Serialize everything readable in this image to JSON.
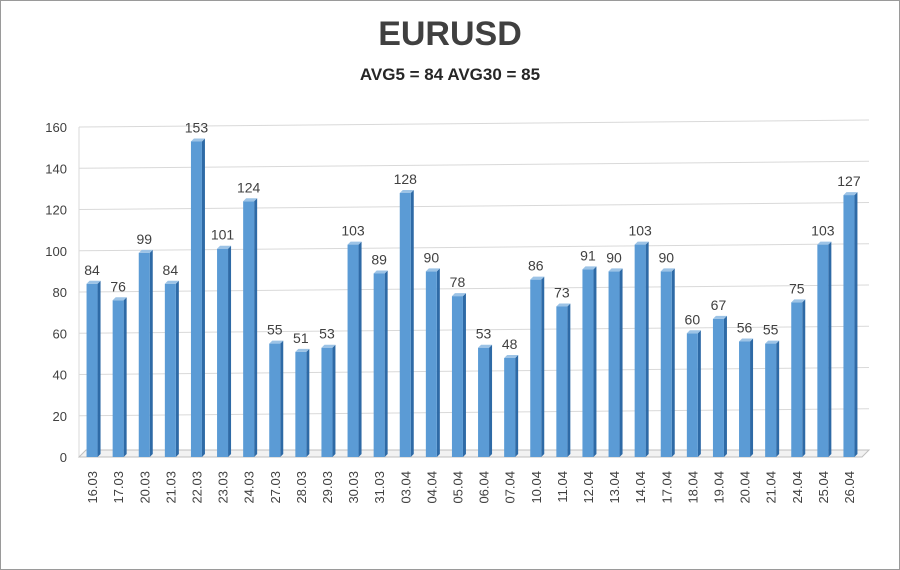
{
  "chart_data": {
    "type": "bar",
    "title": "EURUSD",
    "subtitle": "AVG5 = 84 AVG30 = 85",
    "xlabel": "",
    "ylabel": "",
    "ylim": [
      0,
      160
    ],
    "yticks": [
      0,
      20,
      40,
      60,
      80,
      100,
      120,
      140,
      160
    ],
    "grid": true,
    "categories": [
      "16.03",
      "17.03",
      "20.03",
      "21.03",
      "22.03",
      "23.03",
      "24.03",
      "27.03",
      "28.03",
      "29.03",
      "30.03",
      "31.03",
      "03.04",
      "04.04",
      "05.04",
      "06.04",
      "07.04",
      "10.04",
      "11.04",
      "12.04",
      "13.04",
      "14.04",
      "17.04",
      "18.04",
      "19.04",
      "20.04",
      "21.04",
      "24.04",
      "25.04",
      "26.04"
    ],
    "values": [
      84,
      76,
      99,
      84,
      153,
      101,
      124,
      55,
      51,
      53,
      103,
      89,
      128,
      90,
      78,
      53,
      48,
      86,
      73,
      91,
      90,
      103,
      90,
      60,
      67,
      56,
      55,
      75,
      103,
      127
    ],
    "colors": {
      "bar_front": "#5b9bd5",
      "bar_side": "#2e6aa6",
      "bar_top": "#9cc3e6",
      "grid": "#d9d9d9",
      "floor": "#bfbfbf",
      "text": "#404040"
    }
  }
}
